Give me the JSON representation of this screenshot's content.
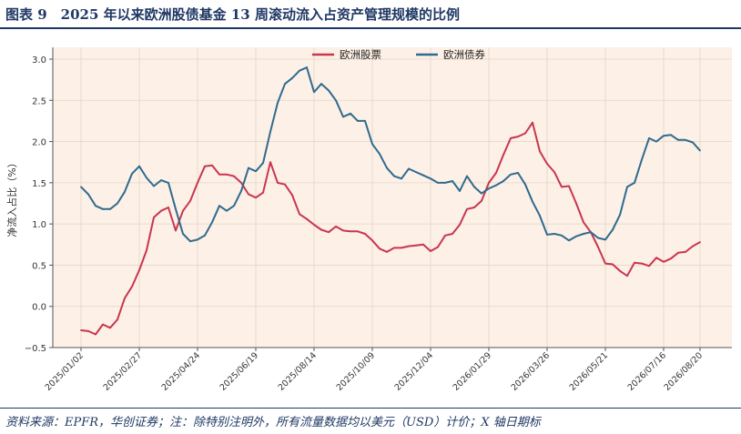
{
  "header": {
    "title": "图表 9　2025 年以来欧洲股债基金 13 周滚动流入占资产管理规模的比例"
  },
  "footer": {
    "source": "资料来源：EPFR，华创证券；注：除特别注明外，所有流量数据均以美元（USD）计价；X 轴日期标"
  },
  "chart_data": {
    "type": "line",
    "title": "",
    "xlabel": "",
    "ylabel": "净流入占比（%）",
    "ylim": [
      -0.5,
      3.0
    ],
    "yticks": [
      "−0.5",
      "0.0",
      "0.5",
      "1.0",
      "1.5",
      "2.0",
      "2.5",
      "3.0"
    ],
    "grid": true,
    "legend_position": "top-center",
    "x": [
      "2025/01/02",
      "2025/01/09",
      "2025/01/16",
      "2025/01/23",
      "2025/01/30",
      "2025/02/06",
      "2025/02/13",
      "2025/02/20",
      "2025/02/27",
      "2025/03/06",
      "2025/03/13",
      "2025/03/20",
      "2025/03/27",
      "2025/04/03",
      "2025/04/10",
      "2025/04/17",
      "2025/04/24",
      "2025/05/01",
      "2025/05/08",
      "2025/05/15",
      "2025/05/22",
      "2025/05/29",
      "2025/06/05",
      "2025/06/12",
      "2025/06/19",
      "2025/06/26",
      "2025/07/03",
      "2025/07/10",
      "2025/07/17",
      "2025/07/24",
      "2025/07/31",
      "2025/08/07",
      "2025/08/14",
      "2025/08/21",
      "2025/08/28",
      "2025/09/04",
      "2025/09/11",
      "2025/09/18",
      "2025/09/25",
      "2025/10/02",
      "2025/10/09",
      "2025/10/16",
      "2025/10/23",
      "2025/10/30",
      "2025/11/06",
      "2025/11/13",
      "2025/11/20",
      "2025/11/27",
      "2025/12/04",
      "2025/12/11",
      "2025/12/18",
      "2025/12/25",
      "2026/01/01",
      "2026/01/08",
      "2026/01/15",
      "2026/01/22",
      "2026/01/29",
      "2026/02/05",
      "2026/02/12",
      "2026/02/19",
      "2026/02/26",
      "2026/03/05",
      "2026/03/12",
      "2026/03/19",
      "2026/03/26",
      "2026/04/02",
      "2026/04/09",
      "2026/04/16",
      "2026/04/23",
      "2026/04/30",
      "2026/05/07",
      "2026/05/14",
      "2026/05/21",
      "2026/05/28",
      "2026/06/04",
      "2026/06/11",
      "2026/06/18",
      "2026/06/25",
      "2026/07/02",
      "2026/07/09",
      "2026/07/16",
      "2026/07/23",
      "2026/07/30",
      "2026/08/06",
      "2026/08/13",
      "2026/08/20"
    ],
    "xtick_labels": [
      "2025/01/02",
      "2025/02/27",
      "2025/04/24",
      "2025/06/19",
      "2025/08/14",
      "2025/10/09",
      "2025/12/04",
      "2026/01/29",
      "2026/03/26",
      "2026/05/21",
      "2026/07/16",
      "2026/08/20"
    ],
    "series": [
      {
        "name": "欧洲股票",
        "color": "#c8364f",
        "values": [
          -0.29,
          -0.3,
          -0.34,
          -0.22,
          -0.26,
          -0.16,
          0.1,
          0.24,
          0.44,
          0.68,
          1.08,
          1.16,
          1.2,
          0.92,
          1.16,
          1.28,
          1.5,
          1.7,
          1.71,
          1.6,
          1.6,
          1.58,
          1.5,
          1.36,
          1.32,
          1.38,
          1.75,
          1.5,
          1.48,
          1.35,
          1.12,
          1.06,
          0.99,
          0.93,
          0.9,
          0.97,
          0.92,
          0.91,
          0.91,
          0.88,
          0.8,
          0.7,
          0.66,
          0.71,
          0.71,
          0.73,
          0.74,
          0.75,
          0.67,
          0.72,
          0.86,
          0.88,
          0.99,
          1.18,
          1.2,
          1.28,
          1.5,
          1.62,
          1.84,
          2.04,
          2.06,
          2.1,
          2.23,
          1.88,
          1.73,
          1.63,
          1.45,
          1.46,
          1.25,
          1.02,
          0.9,
          0.72,
          0.52,
          0.51,
          0.43,
          0.37,
          0.53,
          0.52,
          0.49,
          0.59,
          0.54,
          0.58,
          0.65,
          0.66,
          0.73,
          0.78
        ]
      },
      {
        "name": "欧洲债券",
        "color": "#2e6b8e",
        "values": [
          1.45,
          1.36,
          1.22,
          1.18,
          1.18,
          1.25,
          1.39,
          1.61,
          1.7,
          1.56,
          1.46,
          1.53,
          1.5,
          1.18,
          0.88,
          0.79,
          0.81,
          0.86,
          1.02,
          1.22,
          1.16,
          1.22,
          1.4,
          1.68,
          1.64,
          1.74,
          2.12,
          2.47,
          2.7,
          2.77,
          2.86,
          2.9,
          2.6,
          2.7,
          2.62,
          2.5,
          2.3,
          2.34,
          2.25,
          2.25,
          1.97,
          1.85,
          1.68,
          1.58,
          1.55,
          1.67,
          1.63,
          1.59,
          1.55,
          1.5,
          1.5,
          1.52,
          1.4,
          1.58,
          1.45,
          1.37,
          1.43,
          1.47,
          1.52,
          1.6,
          1.62,
          1.48,
          1.27,
          1.1,
          0.87,
          0.88,
          0.86,
          0.8,
          0.85,
          0.88,
          0.9,
          0.83,
          0.81,
          0.93,
          1.11,
          1.45,
          1.5,
          1.78,
          2.04,
          2.0,
          2.07,
          2.08,
          2.02,
          2.02,
          1.99,
          1.89
        ]
      }
    ]
  }
}
